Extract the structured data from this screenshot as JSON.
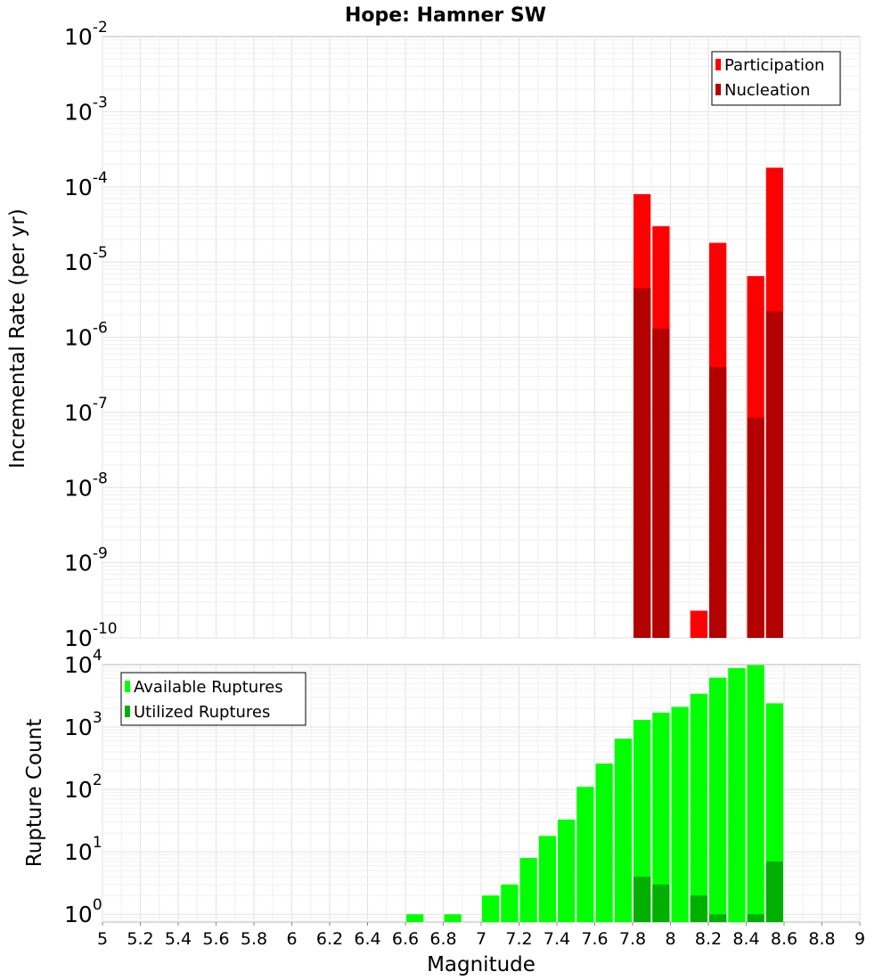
{
  "chart_data": [
    {
      "type": "bar",
      "title": "Hope: Hamner SW",
      "xlabel": "Magnitude",
      "ylabel": "Incremental Rate (per yr)",
      "yscale": "log",
      "ylim": [
        1e-10,
        0.01
      ],
      "xlim": [
        5,
        9
      ],
      "y_exponent_ticks": [
        "-10",
        "-9",
        "-8",
        "-7",
        "-6",
        "-5",
        "-4",
        "-3",
        "-2"
      ],
      "legend_position": "top-right",
      "series": [
        {
          "name": "Participation",
          "color": "#ff0000",
          "x": [
            7.85,
            7.95,
            8.15,
            8.25,
            8.45,
            8.55
          ],
          "values": [
            8e-05,
            3e-05,
            2.3e-10,
            1.8e-05,
            6.5e-06,
            0.00018
          ]
        },
        {
          "name": "Nucleation",
          "color": "#b30000",
          "x": [
            7.85,
            7.95,
            8.25,
            8.45,
            8.55
          ],
          "values": [
            4.5e-06,
            1.3e-06,
            4e-07,
            8.5e-08,
            2.2e-06
          ]
        }
      ]
    },
    {
      "type": "bar",
      "xlabel": "Magnitude",
      "ylabel": "Rupture Count",
      "yscale": "log",
      "ylim": [
        0.75,
        10000
      ],
      "xlim": [
        5,
        9
      ],
      "y_exponent_ticks": [
        "0",
        "1",
        "2",
        "3",
        "4"
      ],
      "x_tick_labels": [
        "5",
        "5.2",
        "5.4",
        "5.6",
        "5.8",
        "6",
        "6.2",
        "6.4",
        "6.6",
        "6.8",
        "7",
        "7.2",
        "7.4",
        "7.6",
        "7.8",
        "8",
        "8.2",
        "8.4",
        "8.6",
        "8.8",
        "9"
      ],
      "legend_position": "top-left",
      "series": [
        {
          "name": "Available Ruptures",
          "color": "#00ff00",
          "x": [
            6.65,
            6.85,
            7.05,
            7.15,
            7.25,
            7.35,
            7.45,
            7.55,
            7.65,
            7.75,
            7.85,
            7.95,
            8.05,
            8.15,
            8.25,
            8.35,
            8.45,
            8.55
          ],
          "values": [
            1,
            1,
            2,
            3,
            8,
            18,
            33,
            110,
            260,
            650,
            1300,
            1700,
            2100,
            3400,
            6200,
            8800,
            9800,
            2400
          ]
        },
        {
          "name": "Utilized Ruptures",
          "color": "#00b000",
          "x": [
            7.85,
            7.95,
            8.15,
            8.25,
            8.45,
            8.55
          ],
          "values": [
            4,
            3,
            2,
            1,
            1,
            7
          ]
        }
      ]
    }
  ]
}
